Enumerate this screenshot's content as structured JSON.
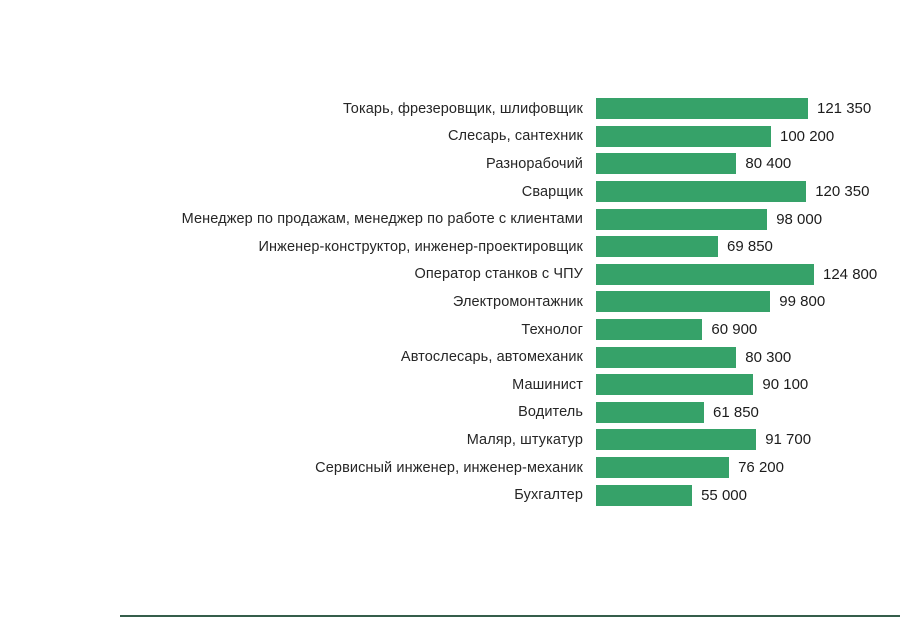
{
  "chart_data": {
    "type": "bar",
    "orientation": "horizontal",
    "title": "",
    "xlabel": "",
    "ylabel": "",
    "grid": false,
    "legend": "none",
    "xlim": [
      0,
      124800
    ],
    "bar_color": "#36a269",
    "categories": [
      "Токарь, фрезеровщик, шлифовщик",
      "Слесарь, сантехник",
      "Разнорабочий",
      "Сварщик",
      "Менеджер по продажам, менеджер по работе с клиентами",
      "Инженер-конструктор, инженер-проектировщик",
      "Оператор станков с ЧПУ",
      "Электромонтажник",
      "Технолог",
      "Автослесарь, автомеханик",
      "Машинист",
      "Водитель",
      "Маляр, штукатур",
      "Сервисный инженер, инженер-механик",
      "Бухгалтер"
    ],
    "values": [
      121350,
      100200,
      80400,
      120350,
      98000,
      69850,
      124800,
      99800,
      60900,
      80300,
      90100,
      61850,
      91700,
      76200,
      55000
    ],
    "value_labels": [
      "121 350",
      "100 200",
      "80 400",
      "120 350",
      "98 000",
      "69 850",
      "124 800",
      "99 800",
      "60 900",
      "80 300",
      "90 100",
      "61 850",
      "91 700",
      "76 200",
      "55 000"
    ]
  },
  "colors": {
    "bar": "#36a269",
    "label_text": "#262626",
    "value_text": "#1c1c1c",
    "bottom_strip": "#355e4b"
  }
}
